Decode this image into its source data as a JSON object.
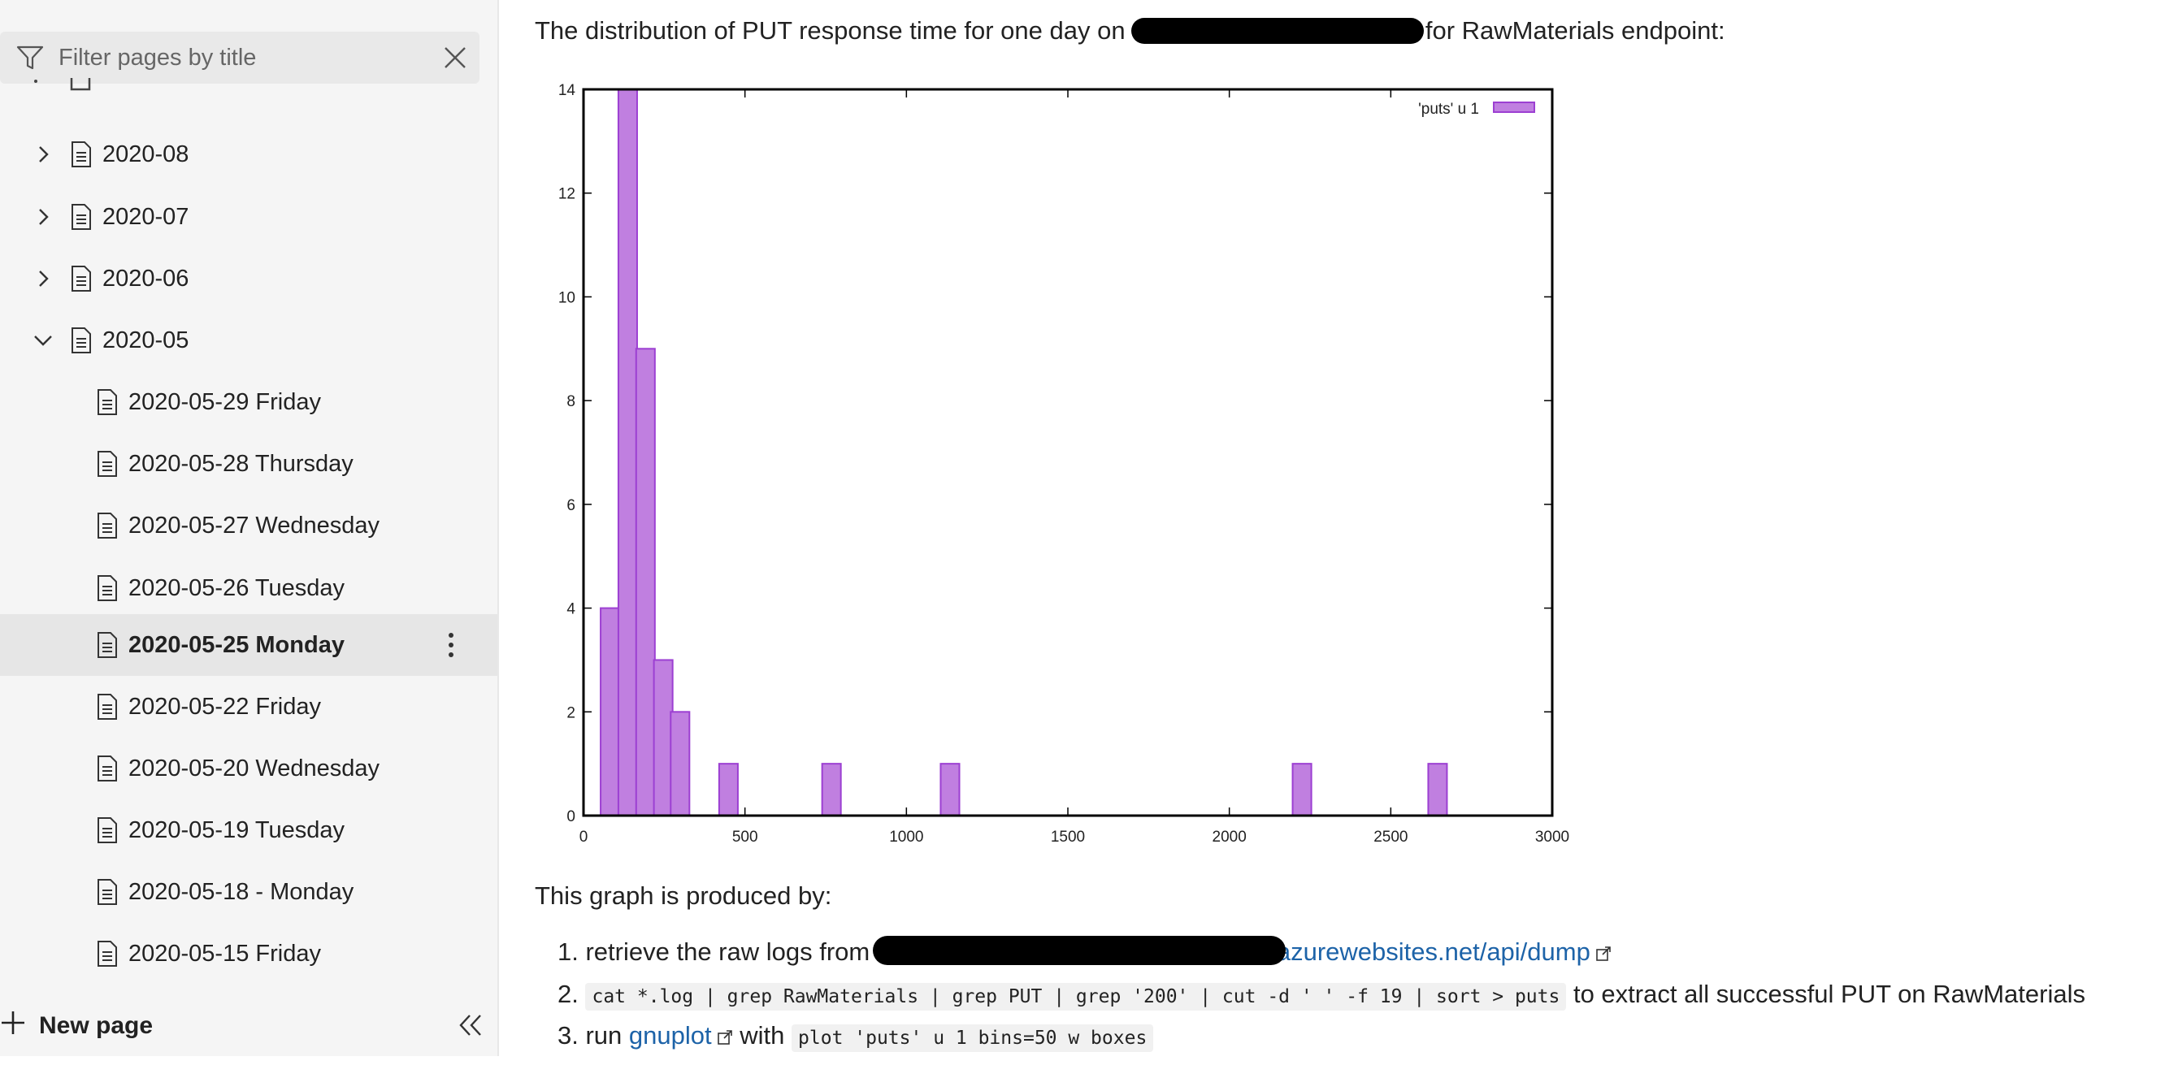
{
  "sidebar": {
    "filter_placeholder": "Filter pages by title",
    "items": [
      {
        "label": "2020-08"
      },
      {
        "label": "2020-07"
      },
      {
        "label": "2020-06"
      },
      {
        "label": "2020-05"
      },
      {
        "label": "2020-05-29 Friday"
      },
      {
        "label": "2020-05-28 Thursday"
      },
      {
        "label": "2020-05-27 Wednesday"
      },
      {
        "label": "2020-05-26 Tuesday"
      },
      {
        "label": "2020-05-25 Monday"
      },
      {
        "label": "2020-05-22 Friday"
      },
      {
        "label": "2020-05-20 Wednesday"
      },
      {
        "label": "2020-05-19 Tuesday"
      },
      {
        "label": "2020-05-18 - Monday"
      },
      {
        "label": "2020-05-15 Friday"
      }
    ],
    "selected": "2020-05-25 Monday",
    "new_page_label": "New page"
  },
  "content": {
    "intro_pre": "The distribution of PUT response time for one day on",
    "intro_post": "for RawMaterials endpoint:",
    "produced_by": "This graph is produced by:",
    "steps": [
      {
        "num": "1.",
        "pre": "retrieve the raw logs from",
        "link": "azurewebsites.net/api/dump"
      },
      {
        "num": "2.",
        "code": "cat *.log | grep RawMaterials | grep PUT | grep '200' | cut -d ' ' -f 19 | sort > puts",
        "post": "to extract all successful PUT on RawMaterials"
      },
      {
        "num": "3.",
        "pre": "run",
        "link": "gnuplot",
        "mid": "with",
        "code": "plot 'puts' u 1 bins=50 w boxes"
      }
    ]
  },
  "chart_data": {
    "type": "bar",
    "legend": "'puts' u 1",
    "legend_position": "top-right",
    "color": "#c07fe0",
    "edge_color": "#9c3fd2",
    "xlim": [
      0,
      3000
    ],
    "ylim": [
      0,
      14
    ],
    "xticks": [
      "0",
      "500",
      "1000",
      "1500",
      "2000",
      "2500",
      "3000"
    ],
    "yticks": [
      "0",
      "2",
      "4",
      "6",
      "8",
      "10",
      "12",
      "14"
    ],
    "bin_width": 58,
    "bars": [
      {
        "x": 82,
        "y": 4
      },
      {
        "x": 137,
        "y": 14
      },
      {
        "x": 192,
        "y": 9
      },
      {
        "x": 247,
        "y": 3
      },
      {
        "x": 299,
        "y": 2
      },
      {
        "x": 449,
        "y": 1
      },
      {
        "x": 768,
        "y": 1
      },
      {
        "x": 1135,
        "y": 1
      },
      {
        "x": 2225,
        "y": 1
      },
      {
        "x": 2645,
        "y": 1
      }
    ]
  }
}
